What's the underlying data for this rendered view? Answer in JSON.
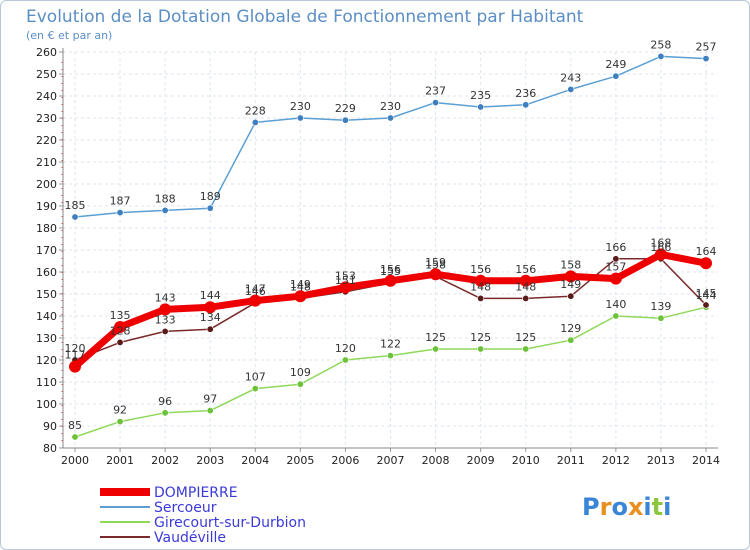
{
  "chart_data": {
    "type": "line",
    "title": "Evolution de la Dotation Globale de Fonctionnement par Habitant",
    "subtitle": "(en € et par an)",
    "x": [
      2000,
      2001,
      2002,
      2003,
      2004,
      2005,
      2006,
      2007,
      2008,
      2009,
      2010,
      2011,
      2012,
      2013,
      2014
    ],
    "ylim": [
      80,
      260
    ],
    "yticks": [
      80,
      90,
      100,
      110,
      120,
      130,
      140,
      150,
      160,
      170,
      180,
      190,
      200,
      210,
      220,
      230,
      240,
      250,
      260
    ],
    "series": [
      {
        "name": "Sercoeur",
        "color": "#5b9fd3",
        "values": [
          185,
          187,
          188,
          189,
          228,
          230,
          229,
          230,
          237,
          235,
          236,
          243,
          249,
          258,
          257
        ]
      },
      {
        "name": "Girecourt-sur-Durbion",
        "color": "#8fd85a",
        "values": [
          85,
          92,
          96,
          97,
          107,
          109,
          120,
          122,
          125,
          125,
          125,
          129,
          140,
          139,
          144
        ]
      },
      {
        "name": "Vaudéville",
        "color": "#7a2a2a",
        "values": [
          120,
          128,
          133,
          134,
          146,
          148,
          151,
          155,
          158,
          148,
          148,
          149,
          166,
          166,
          145
        ]
      },
      {
        "name": "DOMPIERRE",
        "color": "#ee0000",
        "values": [
          117,
          135,
          143,
          144,
          147,
          149,
          153,
          156,
          159,
          156,
          156,
          158,
          157,
          168,
          164
        ]
      }
    ],
    "legend": [
      "DOMPIERRE",
      "Sercoeur",
      "Girecourt-sur-Durbion",
      "Vaudéville"
    ],
    "legend_color": "#3a3ad8",
    "logo": "Proxiti"
  }
}
